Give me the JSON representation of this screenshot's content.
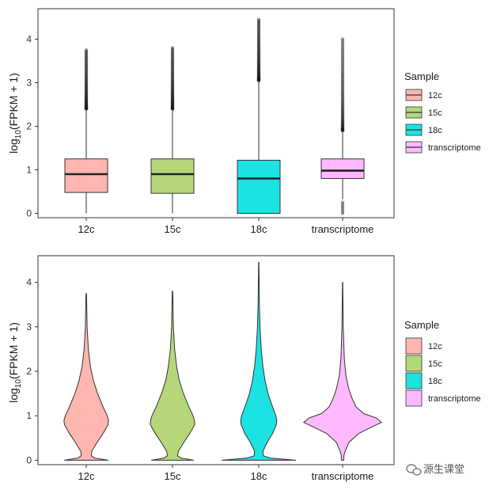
{
  "chart_data": [
    {
      "type": "boxplot",
      "ylabel": "log10(FPKM + 1)",
      "ylim": [
        -0.1,
        4.7
      ],
      "yticks": [
        0,
        1,
        2,
        3,
        4
      ],
      "categories": [
        "12c",
        "15c",
        "18c",
        "transcriptome"
      ],
      "colors": [
        "#ffb6b0",
        "#b5d77a",
        "#1de2e2",
        "#ffb9ff"
      ],
      "boxes": [
        {
          "name": "12c",
          "min": 0,
          "q1": 0.48,
          "median": 0.9,
          "q3": 1.25,
          "whisker_high": 2.4,
          "outliers_from": 2.4,
          "max": 3.75
        },
        {
          "name": "15c",
          "min": 0,
          "q1": 0.46,
          "median": 0.9,
          "q3": 1.25,
          "whisker_high": 2.4,
          "outliers_from": 2.4,
          "max": 3.8
        },
        {
          "name": "18c",
          "min": 0,
          "q1": 0.0,
          "median": 0.8,
          "q3": 1.22,
          "whisker_high": 3.05,
          "outliers_from": 3.05,
          "max": 4.45
        },
        {
          "name": "transcriptome",
          "min": 0.32,
          "q1": 0.8,
          "median": 0.98,
          "q3": 1.25,
          "whisker_high": 1.9,
          "outliers_from": 1.9,
          "max": 4.0,
          "low_outliers": [
            0.0,
            0.05,
            0.1,
            0.15,
            0.2,
            0.25
          ]
        }
      ],
      "legend": {
        "title": "Sample",
        "position": "right",
        "entries": [
          "12c",
          "15c",
          "18c",
          "transcriptome"
        ]
      }
    },
    {
      "type": "violin",
      "ylabel": "log10(FPKM + 1)",
      "ylim": [
        -0.1,
        4.6
      ],
      "yticks": [
        0,
        1,
        2,
        3,
        4
      ],
      "categories": [
        "12c",
        "15c",
        "18c",
        "transcriptome"
      ],
      "colors": [
        "#ffb6b0",
        "#b5d77a",
        "#1de2e2",
        "#ffb9ff"
      ],
      "violins": [
        {
          "name": "12c",
          "max": 3.75,
          "profile": [
            [
              0,
              0.52
            ],
            [
              0.05,
              0.2
            ],
            [
              0.1,
              0.12
            ],
            [
              0.2,
              0.13
            ],
            [
              0.4,
              0.26
            ],
            [
              0.6,
              0.4
            ],
            [
              0.8,
              0.52
            ],
            [
              0.9,
              0.53
            ],
            [
              1.0,
              0.5
            ],
            [
              1.2,
              0.4
            ],
            [
              1.5,
              0.27
            ],
            [
              1.8,
              0.17
            ],
            [
              2.1,
              0.1
            ],
            [
              2.5,
              0.05
            ],
            [
              3.0,
              0.02
            ],
            [
              3.75,
              0.005
            ]
          ]
        },
        {
          "name": "15c",
          "max": 3.8,
          "profile": [
            [
              0,
              0.5
            ],
            [
              0.05,
              0.2
            ],
            [
              0.1,
              0.12
            ],
            [
              0.2,
              0.14
            ],
            [
              0.4,
              0.27
            ],
            [
              0.6,
              0.41
            ],
            [
              0.8,
              0.53
            ],
            [
              0.9,
              0.52
            ],
            [
              1.0,
              0.49
            ],
            [
              1.2,
              0.39
            ],
            [
              1.5,
              0.26
            ],
            [
              1.8,
              0.16
            ],
            [
              2.1,
              0.1
            ],
            [
              2.5,
              0.05
            ],
            [
              3.0,
              0.02
            ],
            [
              3.8,
              0.005
            ]
          ]
        },
        {
          "name": "18c",
          "max": 4.45,
          "profile": [
            [
              0,
              0.88
            ],
            [
              0.05,
              0.28
            ],
            [
              0.1,
              0.11
            ],
            [
              0.2,
              0.1
            ],
            [
              0.4,
              0.2
            ],
            [
              0.6,
              0.33
            ],
            [
              0.8,
              0.42
            ],
            [
              0.9,
              0.43
            ],
            [
              1.0,
              0.41
            ],
            [
              1.2,
              0.33
            ],
            [
              1.5,
              0.22
            ],
            [
              1.8,
              0.15
            ],
            [
              2.1,
              0.1
            ],
            [
              2.5,
              0.06
            ],
            [
              3.0,
              0.03
            ],
            [
              3.5,
              0.015
            ],
            [
              4.45,
              0.004
            ]
          ]
        },
        {
          "name": "transcriptome",
          "min": 0,
          "max": 4.0,
          "profile": [
            [
              0,
              0.03
            ],
            [
              0.1,
              0.03
            ],
            [
              0.2,
              0.06
            ],
            [
              0.4,
              0.15
            ],
            [
              0.6,
              0.38
            ],
            [
              0.75,
              0.7
            ],
            [
              0.85,
              0.93
            ],
            [
              0.95,
              0.8
            ],
            [
              1.05,
              0.5
            ],
            [
              1.2,
              0.32
            ],
            [
              1.4,
              0.22
            ],
            [
              1.6,
              0.15
            ],
            [
              1.9,
              0.08
            ],
            [
              2.3,
              0.04
            ],
            [
              3.0,
              0.015
            ],
            [
              4.0,
              0.004
            ]
          ]
        }
      ],
      "legend": {
        "title": "Sample",
        "position": "right",
        "entries": [
          "12c",
          "15c",
          "18c",
          "transcriptome"
        ]
      }
    }
  ],
  "watermark": "源生课堂"
}
